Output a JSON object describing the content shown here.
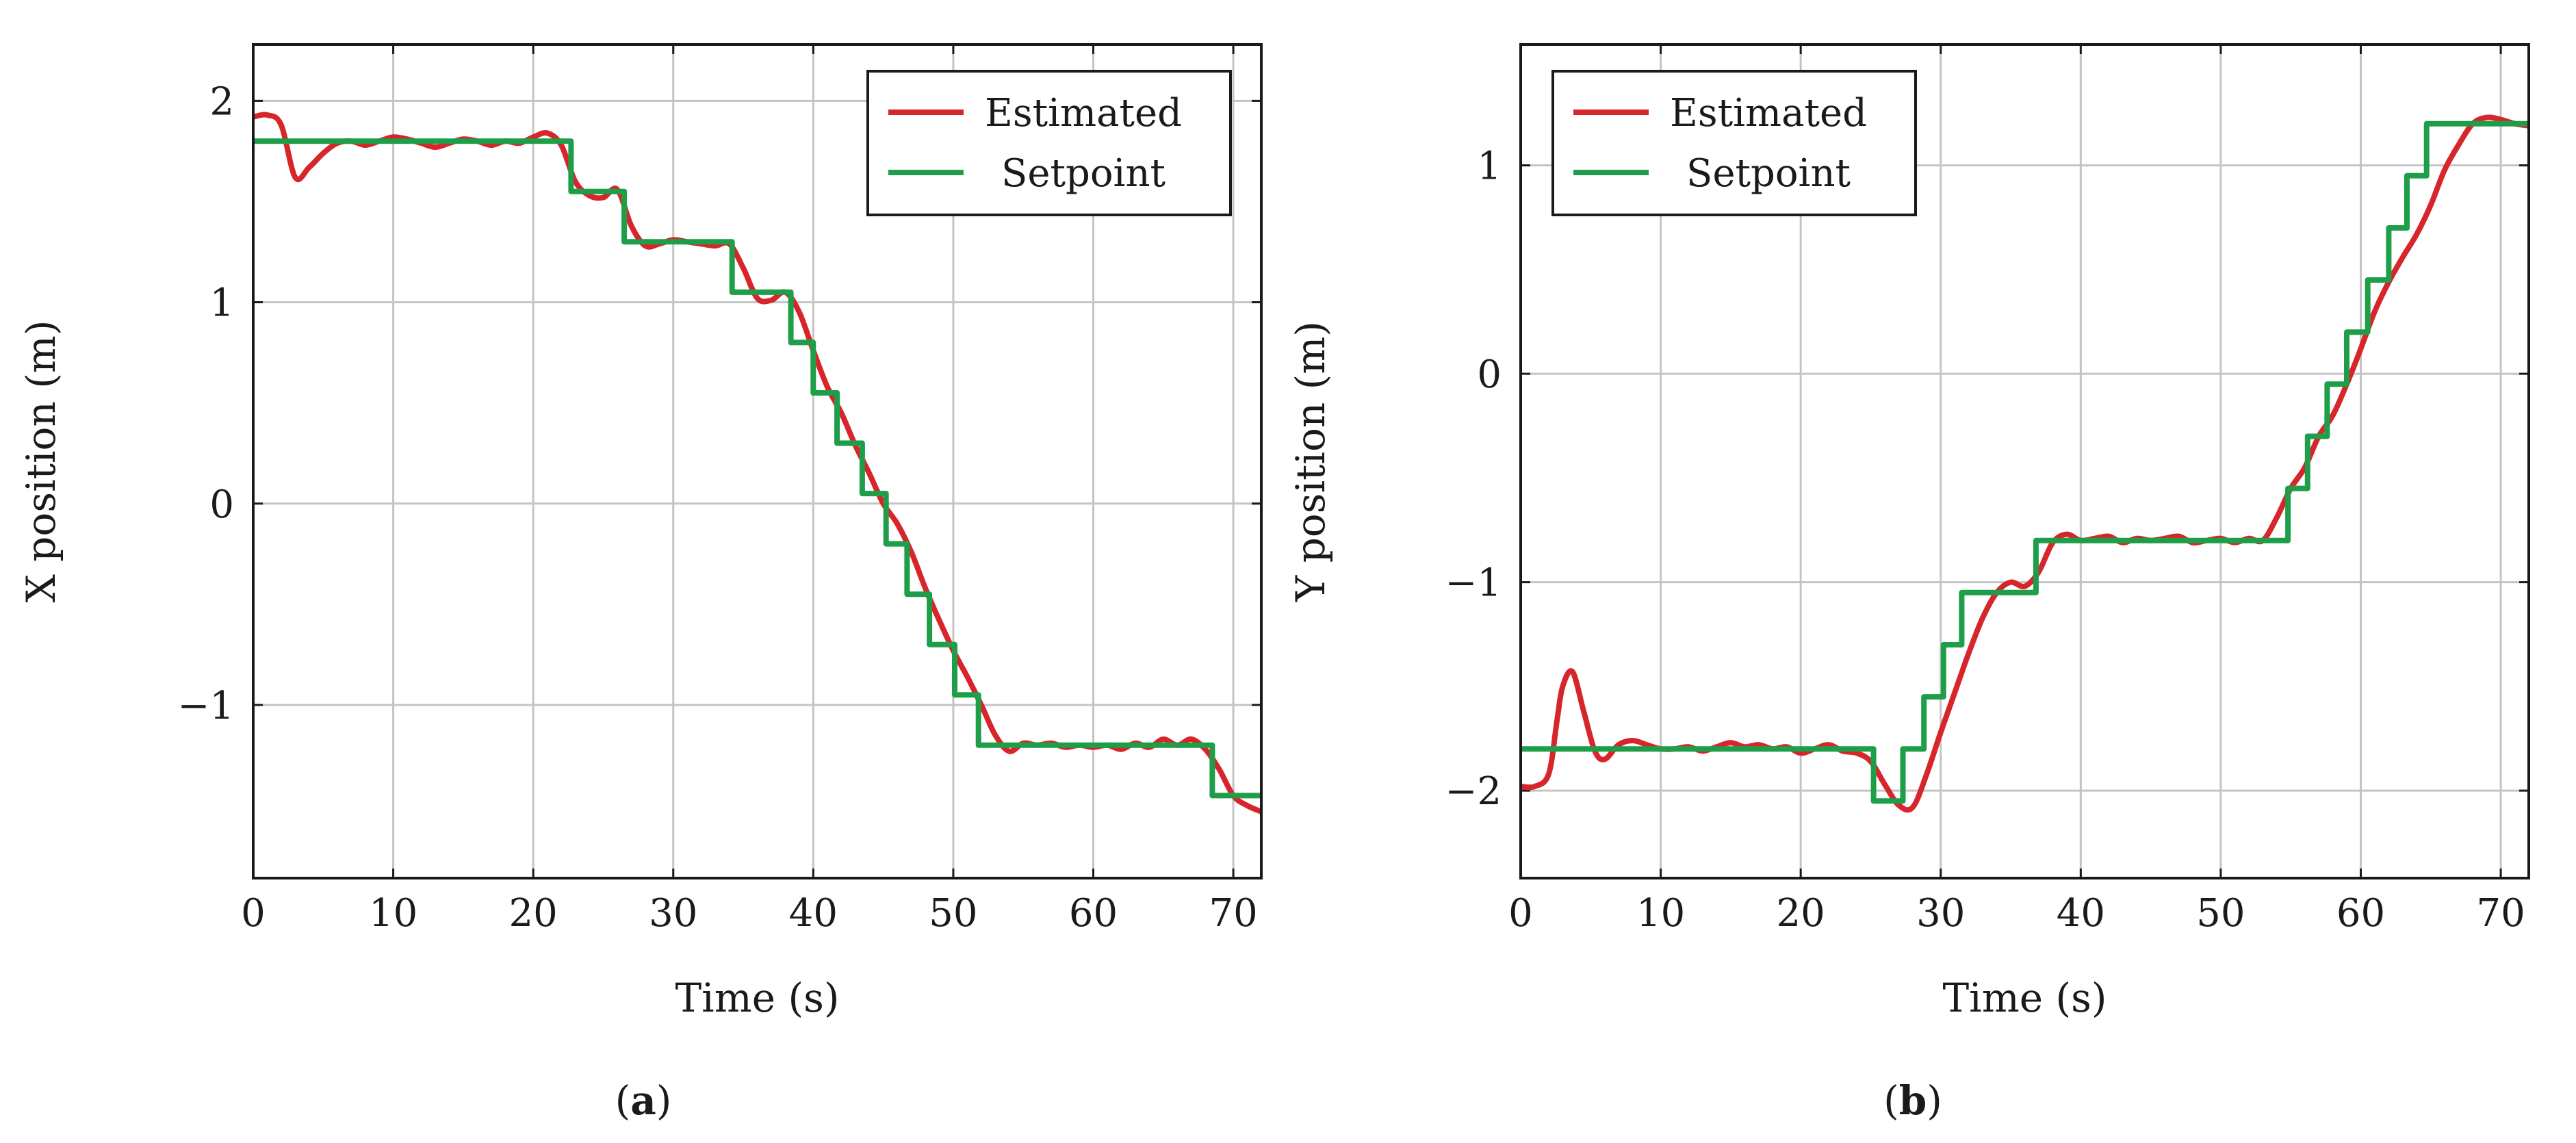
{
  "chart_data": [
    {
      "type": "line",
      "panel_label": "a",
      "xlabel": "Time (s)",
      "ylabel": "X position (m)",
      "xlim": [
        0,
        72
      ],
      "ylim": [
        -1.86,
        2.28
      ],
      "xticks": [
        0,
        10,
        20,
        30,
        40,
        50,
        60,
        70
      ],
      "xtick_labels": [
        "0",
        "10",
        "20",
        "30",
        "40",
        "50",
        "60",
        "70"
      ],
      "yticks": [
        -1,
        0,
        1,
        2
      ],
      "ytick_labels": [
        "−1",
        "0",
        "1",
        "2"
      ],
      "grid": true,
      "legend": {
        "position": "top-right",
        "entries": [
          "Estimated",
          "Setpoint"
        ]
      },
      "series": [
        {
          "name": "Estimated",
          "color": "#d7262b",
          "x": [
            0,
            1,
            2,
            3,
            4,
            5,
            6,
            7,
            8,
            9,
            10,
            11,
            12,
            13,
            14,
            15,
            16,
            17,
            18,
            19,
            20,
            21,
            22,
            23,
            24,
            25,
            26,
            27,
            28,
            29,
            30,
            31,
            32,
            33,
            34,
            35,
            36,
            37,
            38,
            39,
            40,
            41,
            42,
            43,
            44,
            45,
            46,
            47,
            48,
            49,
            50,
            51,
            52,
            53,
            54,
            55,
            56,
            57,
            58,
            59,
            60,
            61,
            62,
            63,
            64,
            65,
            66,
            67,
            68,
            69,
            70,
            71,
            72
          ],
          "y": [
            1.92,
            1.93,
            1.88,
            1.62,
            1.67,
            1.74,
            1.79,
            1.8,
            1.78,
            1.8,
            1.82,
            1.81,
            1.79,
            1.77,
            1.79,
            1.81,
            1.8,
            1.78,
            1.8,
            1.79,
            1.82,
            1.84,
            1.78,
            1.6,
            1.53,
            1.52,
            1.56,
            1.38,
            1.28,
            1.29,
            1.31,
            1.3,
            1.29,
            1.28,
            1.29,
            1.17,
            1.02,
            1.01,
            1.05,
            0.95,
            0.76,
            0.58,
            0.45,
            0.29,
            0.15,
            0.0,
            -0.1,
            -0.24,
            -0.42,
            -0.58,
            -0.73,
            -0.86,
            -1.0,
            -1.15,
            -1.23,
            -1.19,
            -1.2,
            -1.19,
            -1.21,
            -1.2,
            -1.21,
            -1.2,
            -1.22,
            -1.19,
            -1.21,
            -1.17,
            -1.2,
            -1.17,
            -1.22,
            -1.32,
            -1.45,
            -1.5,
            -1.53
          ]
        },
        {
          "name": "Setpoint",
          "color": "#1e9e48",
          "step": true,
          "x": [
            0,
            22.7,
            26.5,
            34.2,
            38.4,
            40,
            41.7,
            43.5,
            45.2,
            46.7,
            48.3,
            50.1,
            51.8,
            68.5,
            72
          ],
          "y": [
            1.8,
            1.55,
            1.3,
            1.05,
            0.8,
            0.55,
            0.3,
            0.05,
            -0.2,
            -0.45,
            -0.7,
            -0.95,
            -1.2,
            -1.45,
            -1.45
          ]
        }
      ]
    },
    {
      "type": "line",
      "panel_label": "b",
      "xlabel": "Time (s)",
      "ylabel": "Y position (m)",
      "xlim": [
        0,
        72
      ],
      "ylim": [
        -2.42,
        1.58
      ],
      "xticks": [
        0,
        10,
        20,
        30,
        40,
        50,
        60,
        70
      ],
      "xtick_labels": [
        "0",
        "10",
        "20",
        "30",
        "40",
        "50",
        "60",
        "70"
      ],
      "yticks": [
        -2,
        -1,
        0,
        1
      ],
      "ytick_labels": [
        "−2",
        "−1",
        "0",
        "1"
      ],
      "grid": true,
      "legend": {
        "position": "top-left",
        "entries": [
          "Estimated",
          "Setpoint"
        ]
      },
      "series": [
        {
          "name": "Estimated",
          "color": "#d7262b",
          "x": [
            0,
            1,
            2,
            2.6,
            3,
            3.7,
            4.5,
            5.3,
            6,
            7,
            8,
            9,
            10,
            11,
            12,
            13,
            14,
            15,
            16,
            17,
            18,
            19,
            20,
            21,
            22,
            23,
            24,
            25,
            26,
            27,
            28,
            29,
            30,
            31,
            32,
            33,
            34,
            35,
            36,
            37,
            38,
            39,
            40,
            41,
            42,
            43,
            44,
            45,
            46,
            47,
            48,
            49,
            50,
            51,
            52,
            53,
            54,
            55,
            56,
            57,
            58,
            59,
            60,
            61,
            62,
            63,
            64,
            65,
            66,
            67,
            68,
            69,
            70,
            71,
            72
          ],
          "y": [
            -1.98,
            -1.98,
            -1.92,
            -1.66,
            -1.5,
            -1.43,
            -1.62,
            -1.81,
            -1.85,
            -1.78,
            -1.76,
            -1.78,
            -1.8,
            -1.8,
            -1.79,
            -1.81,
            -1.79,
            -1.77,
            -1.79,
            -1.78,
            -1.8,
            -1.79,
            -1.82,
            -1.8,
            -1.78,
            -1.81,
            -1.82,
            -1.86,
            -1.97,
            -2.07,
            -2.08,
            -1.92,
            -1.72,
            -1.53,
            -1.34,
            -1.17,
            -1.05,
            -1.0,
            -1.02,
            -0.95,
            -0.81,
            -0.77,
            -0.8,
            -0.79,
            -0.78,
            -0.81,
            -0.79,
            -0.8,
            -0.79,
            -0.78,
            -0.81,
            -0.8,
            -0.79,
            -0.81,
            -0.79,
            -0.8,
            -0.69,
            -0.55,
            -0.45,
            -0.3,
            -0.2,
            -0.05,
            0.12,
            0.3,
            0.44,
            0.56,
            0.67,
            0.81,
            0.98,
            1.1,
            1.2,
            1.23,
            1.22,
            1.2,
            1.19
          ]
        },
        {
          "name": "Setpoint",
          "color": "#1e9e48",
          "step": true,
          "x": [
            0,
            25.2,
            27.3,
            28.8,
            30.2,
            31.5,
            32.8,
            36.8,
            53.6,
            54.8,
            56.2,
            57.6,
            59,
            60.5,
            62,
            63.3,
            64.7,
            66.2,
            72
          ],
          "y": [
            -1.8,
            -2.05,
            -1.8,
            -1.55,
            -1.3,
            -1.05,
            -1.05,
            -0.8,
            -0.8,
            -0.55,
            -0.3,
            -0.05,
            0.2,
            0.45,
            0.7,
            0.95,
            1.2,
            1.2,
            1.2
          ]
        }
      ]
    }
  ]
}
